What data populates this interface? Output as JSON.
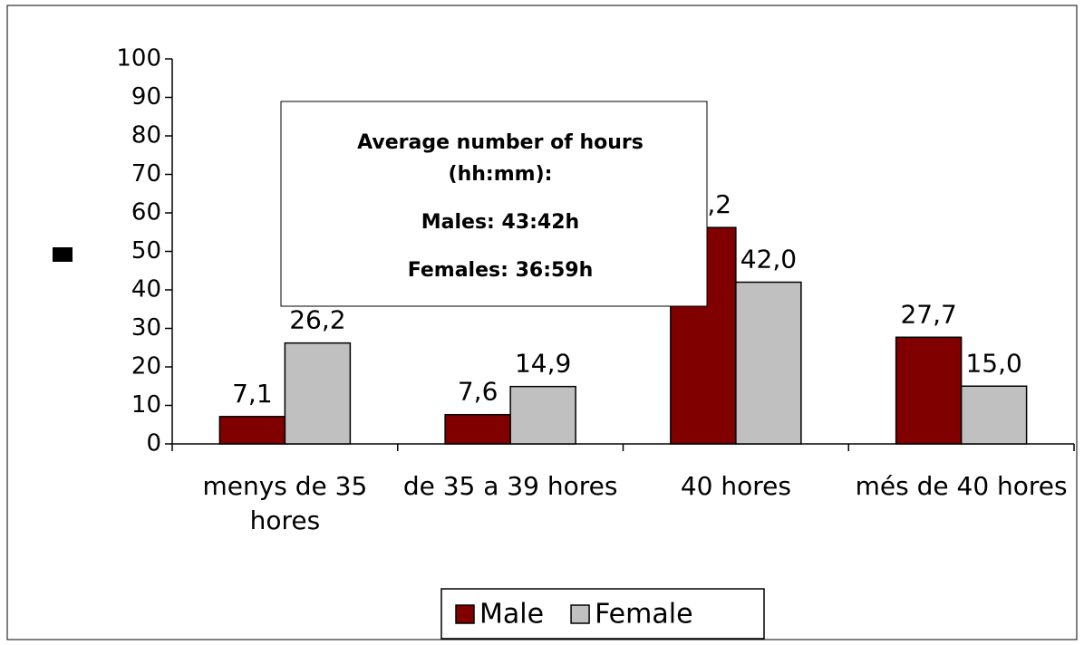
{
  "chart_data": {
    "type": "bar",
    "categories": [
      "menys de 35 hores",
      "de 35 a 39 hores",
      "40 hores",
      "més de 40 hores"
    ],
    "series": [
      {
        "name": "Male",
        "color": "#800000",
        "values": [
          7.1,
          7.6,
          56.2,
          27.7
        ],
        "value_labels": [
          "7,1",
          "7,6",
          "56,2",
          "27,7"
        ]
      },
      {
        "name": "Female",
        "color": "#c0c0c0",
        "values": [
          26.2,
          14.9,
          42.0,
          15.0
        ],
        "value_labels": [
          "26,2",
          "14,9",
          "42,0",
          "15,0"
        ]
      }
    ],
    "annotation": [
      "Average number of hours",
      "(hh:mm):",
      "Males: 43:42h",
      "Females: 36:59h"
    ],
    "ylim": [
      0,
      100
    ],
    "yticks": [
      0,
      10,
      20,
      30,
      40,
      50,
      60,
      70,
      80,
      90,
      100
    ],
    "grid": false,
    "legend": "bottom"
  }
}
